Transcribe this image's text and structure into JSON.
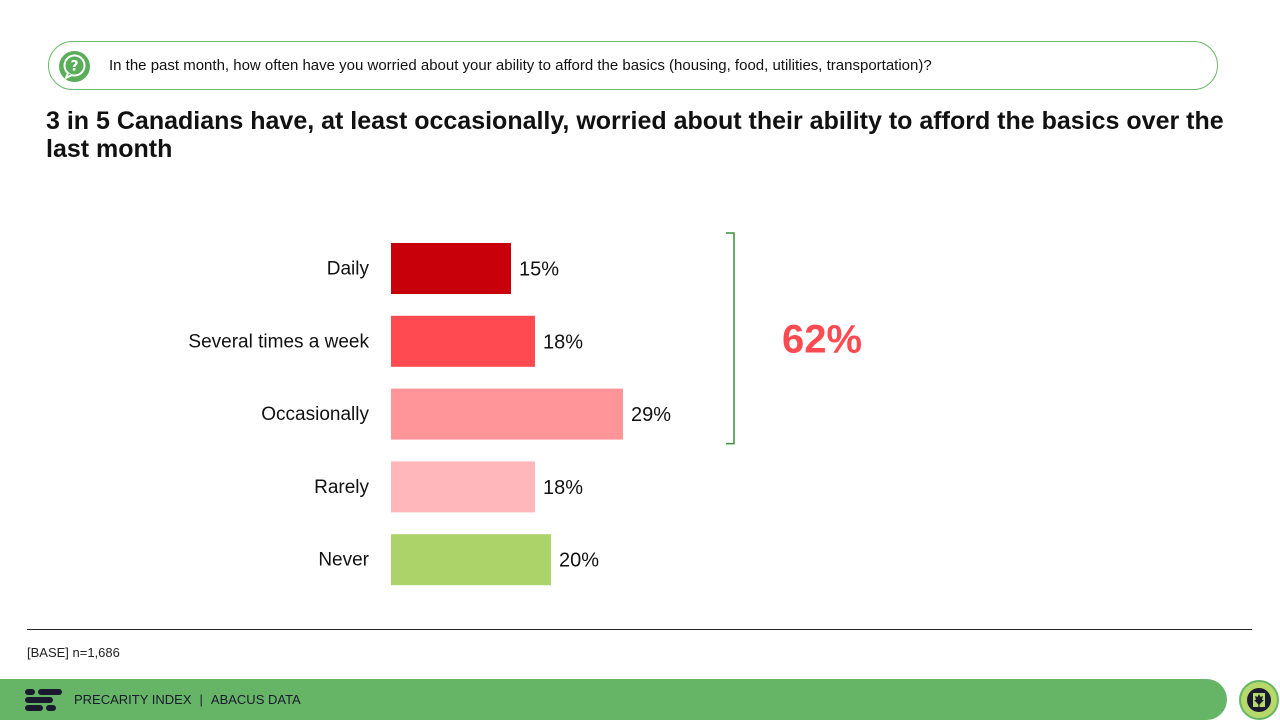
{
  "question": {
    "icon": "question-bubble-icon",
    "text": "In the past month, how often have you worried about your ability to afford the basics (housing, food, utilities, transportation)?"
  },
  "headline": "3 in 5 Canadians have, at least occasionally, worried about their ability to afford the basics over the last month",
  "chart_data": {
    "type": "bar",
    "orientation": "horizontal",
    "categories": [
      "Daily",
      "Several times a week",
      "Occasionally",
      "Rarely",
      "Never"
    ],
    "values": [
      15,
      18,
      29,
      18,
      20
    ],
    "value_labels": [
      "15%",
      "18%",
      "29%",
      "18%",
      "20%"
    ],
    "colors": [
      "#c8000a",
      "#ff4a52",
      "#ff9499",
      "#ffb7bb",
      "#acd36a"
    ],
    "bracket": {
      "categories": [
        "Daily",
        "Several times a week",
        "Occasionally"
      ],
      "label": "62%",
      "color": "#ff4a52",
      "line_color": "#3a8f3a"
    },
    "grid": false,
    "legend": "none"
  },
  "base_note": "[BASE] n=1,686",
  "footer": {
    "brand": "PRECARITY INDEX",
    "separator": "|",
    "org": "ABACUS DATA",
    "logo_icon": "abacus-logo-icon",
    "badge_icon": "canada-maple-leaf-icon"
  }
}
